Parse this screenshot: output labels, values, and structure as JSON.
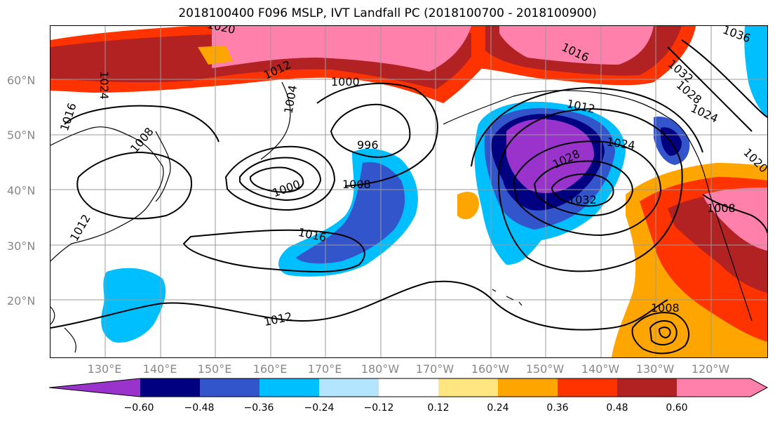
{
  "title": "2018100400 F096 MSLP, IVT Landfall PC (2018100700 - 2018100900)",
  "lat_labels": [
    "60°N",
    "50°N",
    "40°N",
    "30°N",
    "20°N"
  ],
  "lon_labels": [
    "130°E",
    "140°E",
    "150°E",
    "160°E",
    "170°E",
    "180°W",
    "170°W",
    "160°W",
    "150°W",
    "140°W",
    "130°W",
    "120°W"
  ],
  "colorbar": {
    "tick_labels": [
      "−0.60",
      "−0.48",
      "−0.36",
      "−0.24",
      "−0.12",
      "0.12",
      "0.24",
      "0.36",
      "0.48",
      "0.60"
    ],
    "colors": [
      "#9933cc",
      "#000080",
      "#3355cc",
      "#00bfff",
      "#b3e5ff",
      "#ffffff",
      "#ffe680",
      "#ffa500",
      "#ff3300",
      "#b22222",
      "#ff80aa"
    ]
  },
  "contour_labels": [
    "1020",
    "1024",
    "1016",
    "1008",
    "1012",
    "1004",
    "1000",
    "996",
    "1000",
    "1008",
    "1016",
    "1012",
    "1012",
    "1016",
    "1036",
    "1032",
    "1028",
    "1024",
    "1012",
    "1028",
    "1024",
    "1032",
    "1008",
    "1008",
    "1020"
  ]
}
